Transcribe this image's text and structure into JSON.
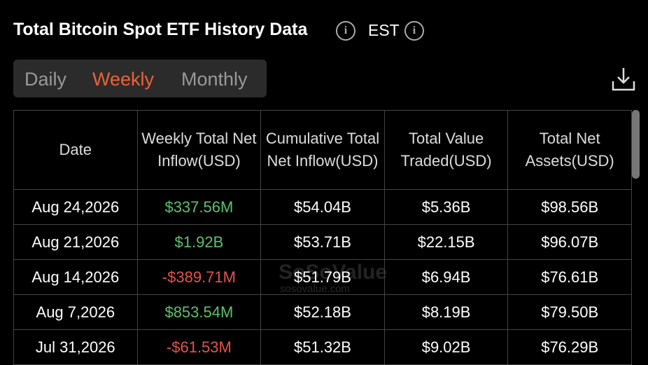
{
  "header": {
    "title": "Total Bitcoin Spot ETF History Data",
    "timezone": "EST"
  },
  "tabs": {
    "items": [
      "Daily",
      "Weekly",
      "Monthly"
    ],
    "active": 1
  },
  "table": {
    "columns": [
      "Date",
      "Weekly Total Net Inflow(USD)",
      "Cumulative Total Net Inflow(USD)",
      "Total Value Traded(USD)",
      "Total Net Assets(USD)"
    ],
    "rows": [
      [
        "Aug 24,2026",
        "$337.56M",
        "$54.04B",
        "$5.36B",
        "$98.56B"
      ],
      [
        "Aug 21,2026",
        "$1.92B",
        "$53.71B",
        "$22.15B",
        "$96.07B"
      ],
      [
        "Aug 14,2026",
        "-$389.71M",
        "$51.79B",
        "$6.94B",
        "$76.61B"
      ],
      [
        "Aug 7,2026",
        "$853.54M",
        "$52.18B",
        "$8.19B",
        "$79.50B"
      ],
      [
        "Jul 31,2026",
        "-$61.53M",
        "$51.32B",
        "$9.02B",
        "$76.29B"
      ]
    ],
    "inflow_colors": [
      "#5cc26a",
      "#5cc26a",
      "#e5534b",
      "#5cc26a",
      "#e5534b"
    ]
  },
  "watermark": {
    "brand": "SoSoValue",
    "site": "sosovalue.com"
  }
}
